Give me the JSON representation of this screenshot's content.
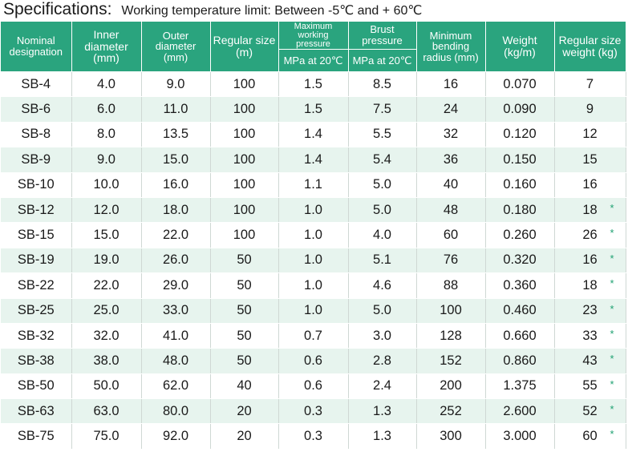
{
  "title": {
    "main": "Specifications:",
    "sub": "Working temperature limit: Between -5℃ and + 60℃"
  },
  "headers": {
    "nominal": "Nominal designation",
    "inner": "Inner diameter (mm)",
    "outer": "Outer diameter (mm)",
    "regular_size": "Regular size (m)",
    "max_pressure": "Maximum working pressure",
    "max_pressure_unit": "MPa at 20℃",
    "burst": "Brust pressure",
    "burst_unit": "MPa at 20℃",
    "bending": "Minimum bending radius (mm)",
    "weight": "Weight (kg/m)",
    "size_weight": "Regular size weight (kg)"
  },
  "marker": "*",
  "rows": [
    {
      "des": "SB-4",
      "inner": "4.0",
      "outer": "9.0",
      "size": "100",
      "wp": "1.5",
      "bp": "8.5",
      "bend": "16",
      "weight": "0.070",
      "sw": "7",
      "star": false
    },
    {
      "des": "SB-6",
      "inner": "6.0",
      "outer": "11.0",
      "size": "100",
      "wp": "1.5",
      "bp": "7.5",
      "bend": "24",
      "weight": "0.090",
      "sw": "9",
      "star": false
    },
    {
      "des": "SB-8",
      "inner": "8.0",
      "outer": "13.5",
      "size": "100",
      "wp": "1.4",
      "bp": "5.5",
      "bend": "32",
      "weight": "0.120",
      "sw": "12",
      "star": false
    },
    {
      "des": "SB-9",
      "inner": "9.0",
      "outer": "15.0",
      "size": "100",
      "wp": "1.4",
      "bp": "5.4",
      "bend": "36",
      "weight": "0.150",
      "sw": "15",
      "star": false
    },
    {
      "des": "SB-10",
      "inner": "10.0",
      "outer": "16.0",
      "size": "100",
      "wp": "1.1",
      "bp": "5.0",
      "bend": "40",
      "weight": "0.160",
      "sw": "16",
      "star": false
    },
    {
      "des": "SB-12",
      "inner": "12.0",
      "outer": "18.0",
      "size": "100",
      "wp": "1.0",
      "bp": "5.0",
      "bend": "48",
      "weight": "0.180",
      "sw": "18",
      "star": true
    },
    {
      "des": "SB-15",
      "inner": "15.0",
      "outer": "22.0",
      "size": "100",
      "wp": "1.0",
      "bp": "4.0",
      "bend": "60",
      "weight": "0.260",
      "sw": "26",
      "star": true
    },
    {
      "des": "SB-19",
      "inner": "19.0",
      "outer": "26.0",
      "size": "50",
      "wp": "1.0",
      "bp": "5.1",
      "bend": "76",
      "weight": "0.320",
      "sw": "16",
      "star": true
    },
    {
      "des": "SB-22",
      "inner": "22.0",
      "outer": "29.0",
      "size": "50",
      "wp": "1.0",
      "bp": "4.6",
      "bend": "88",
      "weight": "0.360",
      "sw": "18",
      "star": true
    },
    {
      "des": "SB-25",
      "inner": "25.0",
      "outer": "33.0",
      "size": "50",
      "wp": "1.0",
      "bp": "5.0",
      "bend": "100",
      "weight": "0.460",
      "sw": "23",
      "star": true
    },
    {
      "des": "SB-32",
      "inner": "32.0",
      "outer": "41.0",
      "size": "50",
      "wp": "0.7",
      "bp": "3.0",
      "bend": "128",
      "weight": "0.660",
      "sw": "33",
      "star": true
    },
    {
      "des": "SB-38",
      "inner": "38.0",
      "outer": "48.0",
      "size": "50",
      "wp": "0.6",
      "bp": "2.8",
      "bend": "152",
      "weight": "0.860",
      "sw": "43",
      "star": true
    },
    {
      "des": "SB-50",
      "inner": "50.0",
      "outer": "62.0",
      "size": "40",
      "wp": "0.6",
      "bp": "2.4",
      "bend": "200",
      "weight": "1.375",
      "sw": "55",
      "star": true
    },
    {
      "des": "SB-63",
      "inner": "63.0",
      "outer": "80.0",
      "size": "20",
      "wp": "0.3",
      "bp": "1.3",
      "bend": "252",
      "weight": "2.600",
      "sw": "52",
      "star": true
    },
    {
      "des": "SB-75",
      "inner": "75.0",
      "outer": "92.0",
      "size": "20",
      "wp": "0.3",
      "bp": "1.3",
      "bend": "300",
      "weight": "3.000",
      "sw": "60",
      "star": true
    }
  ]
}
